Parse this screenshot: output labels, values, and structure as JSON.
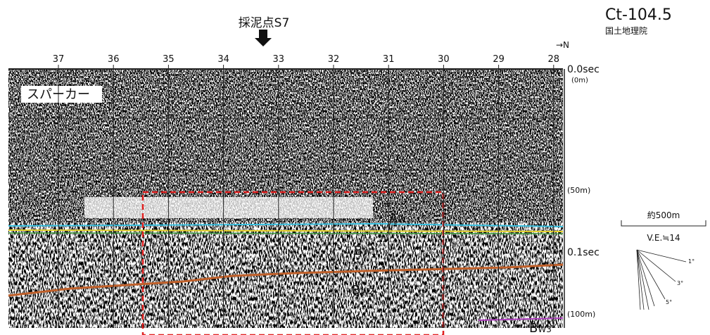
{
  "header": {
    "sample_point": "採泥点S7",
    "line_id": "Ct-104.5",
    "agency": "国土地理院",
    "north": "→N"
  },
  "distance_marks": [
    37,
    36,
    35,
    34,
    33,
    32,
    31,
    30,
    29,
    28
  ],
  "depth_labels": [
    "0.0sec",
    "(0m)",
    "(50m)",
    "0.1sec",
    "(100m)"
  ],
  "source_label": "スパーカー",
  "horizons": [
    {
      "main": "A",
      "sub": "W"
    },
    {
      "main": "B",
      "sub": "W1"
    },
    {
      "main": "B",
      "sub": "W2"
    },
    {
      "main": "B",
      "sub": "W3"
    }
  ],
  "scale": {
    "distance": "約500m",
    "exaggeration": "V.E.≒14",
    "angles": [
      "1°",
      "3°",
      "5°"
    ]
  }
}
